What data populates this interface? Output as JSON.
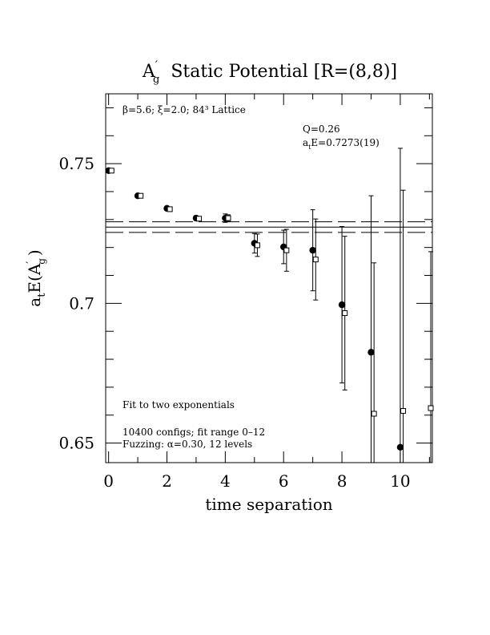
{
  "chart_data": {
    "type": "scatter",
    "title_main": "A",
    "title_sup": "′",
    "title_sub": "g",
    "title_rest": "Static Potential [R=(8,8)]",
    "xlabel": "time separation",
    "ylabel_main": "a",
    "ylabel_sub": "t",
    "ylabel_rest": "E(A",
    "ylabel_sup": "′",
    "ylabel_sub2": "g",
    "ylabel_end": ")",
    "xlim": [
      -0.1,
      11.1
    ],
    "ylim": [
      0.643,
      0.775
    ],
    "xticks": [
      0,
      2,
      4,
      6,
      8,
      10
    ],
    "xtick_labels": [
      "0",
      "2",
      "4",
      "6",
      "8",
      "10"
    ],
    "yticks": [
      0.65,
      0.7,
      0.75
    ],
    "ytick_labels": [
      "0.65",
      "0.7",
      "0.75"
    ],
    "annotations": {
      "lattice": "β=5.6; ξ=2.0; 84³ Lattice",
      "q": "Q=0.26",
      "energy_main": "a",
      "energy_sub": "t",
      "energy_rest": "E=0.7273(19)",
      "fit": "Fit to two exponentials",
      "configs": "10400 configs; fit range 0–12",
      "fuzzing": "Fuzzing: α=0.30, 12 levels"
    },
    "fit_band": {
      "center": 0.7273,
      "upper": 0.7292,
      "lower": 0.7254
    },
    "series": [
      {
        "marker": "filled-circle",
        "x": [
          0,
          1,
          2,
          3,
          4,
          5,
          6,
          7,
          8,
          9,
          10
        ],
        "y": [
          0.7475,
          0.7385,
          0.734,
          0.7305,
          0.7305,
          0.7215,
          0.7202,
          0.719,
          0.6995,
          0.6825,
          0.6485
        ],
        "err": [
          0.0004,
          0.0005,
          0.0006,
          0.0008,
          0.0015,
          0.0035,
          0.006,
          0.0145,
          0.028,
          0.056,
          0.107
        ]
      },
      {
        "marker": "open-square",
        "x": [
          0.1,
          1.1,
          2.1,
          3.1,
          4.1,
          5.1,
          6.1,
          7.1,
          8.1,
          9.1,
          10.1,
          11.1
        ],
        "y": [
          0.7475,
          0.7385,
          0.7337,
          0.7303,
          0.7305,
          0.7208,
          0.719,
          0.7157,
          0.6965,
          0.6605,
          0.6615,
          0.6625
        ],
        "err": [
          0.0003,
          0.0004,
          0.0005,
          0.0007,
          0.0012,
          0.004,
          0.0075,
          0.0145,
          0.0275,
          0.054,
          0.079,
          0.056
        ]
      }
    ]
  }
}
